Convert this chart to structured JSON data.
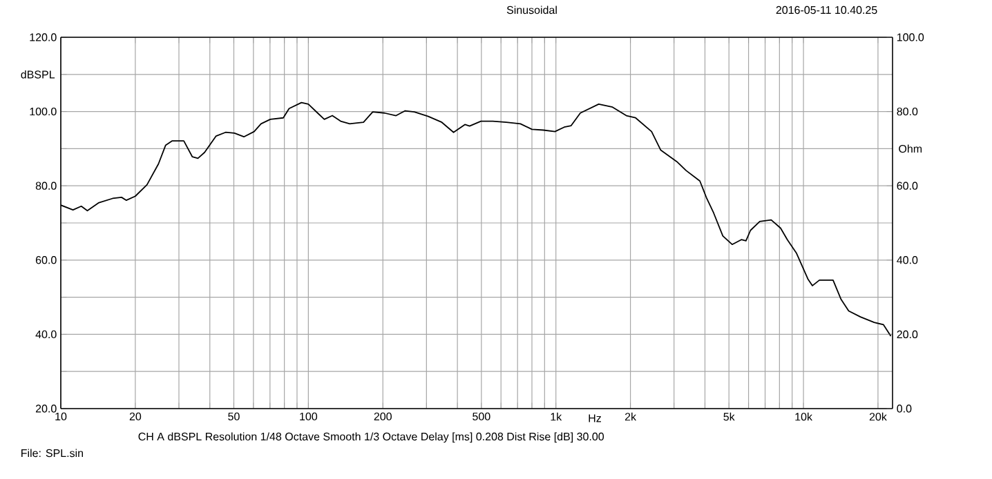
{
  "chart_data": {
    "type": "line",
    "title": "Sinusoidal",
    "subtitle": "2016-05-11 10.40.25",
    "xlabel": "Hz",
    "ylabel": "dBSPL",
    "y2label": "Ohm",
    "annotations": [
      "CH A   dBSPL   Resolution 1/48 Octave   Smooth 1/3 Octave   Delay [ms] 0.208   Dist Rise [dB] 30.00",
      "File:   SPL.sin"
    ],
    "log": "x",
    "grid": true,
    "marker": "none",
    "line_style": "solid",
    "color": "#000000",
    "xlim": [
      10,
      22900
    ],
    "ylim": [
      20,
      120
    ],
    "y2lim": [
      0,
      100
    ],
    "xticks": [
      10,
      20,
      {
        "value": 30,
        "label": null
      },
      {
        "value": 40,
        "label": null
      },
      50,
      {
        "value": 60,
        "label": null
      },
      {
        "value": 70,
        "label": null
      },
      {
        "value": 80,
        "label": null
      },
      {
        "value": 90,
        "label": null
      },
      100,
      200,
      {
        "value": 300,
        "label": null
      },
      {
        "value": 400,
        "label": null
      },
      500,
      {
        "value": 600,
        "label": null
      },
      {
        "value": 700,
        "label": null
      },
      {
        "value": 800,
        "label": null
      },
      {
        "value": 900,
        "label": null
      },
      {
        "value": 1000,
        "label": "1k"
      },
      {
        "value": 2000,
        "label": "2k"
      },
      {
        "value": 3000,
        "label": null
      },
      {
        "value": 4000,
        "label": null
      },
      {
        "value": 5000,
        "label": "5k"
      },
      {
        "value": 6000,
        "label": null
      },
      {
        "value": 7000,
        "label": null
      },
      {
        "value": 8000,
        "label": null
      },
      {
        "value": 9000,
        "label": null
      },
      {
        "value": 10000,
        "label": "10k"
      },
      {
        "value": 20000,
        "label": "20k"
      }
    ],
    "yticks": [
      {
        "value": 20,
        "label": "20.0"
      },
      {
        "value": 30,
        "label": null
      },
      {
        "value": 40,
        "label": "40.0"
      },
      {
        "value": 50,
        "label": null
      },
      {
        "value": 60,
        "label": "60.0"
      },
      {
        "value": 70,
        "label": null
      },
      {
        "value": 80,
        "label": "80.0"
      },
      {
        "value": 90,
        "label": null
      },
      {
        "value": 100,
        "label": "100.0"
      },
      {
        "value": 110,
        "label": null
      },
      {
        "value": 120,
        "label": "120.0"
      }
    ],
    "y2ticks": [
      {
        "value": 0,
        "label": "0.0"
      },
      {
        "value": 20,
        "label": "20.0"
      },
      {
        "value": 40,
        "label": "40.0"
      },
      {
        "value": 60,
        "label": "60.0"
      },
      {
        "value": 80,
        "label": "80.0"
      },
      {
        "value": 100,
        "label": "100.0"
      }
    ],
    "x": [
      10,
      11.2,
      12.1,
      12.8,
      14.2,
      16.2,
      17.6,
      18.4,
      20,
      22.3,
      24.8,
      26.5,
      28.2,
      31.4,
      34,
      35.8,
      38.1,
      42.4,
      46.3,
      50.3,
      54.9,
      60.4,
      64.4,
      70.2,
      79.2,
      83.6,
      93.8,
      100,
      109,
      116,
      125,
      135,
      147,
      167,
      182,
      203,
      226,
      246,
      268,
      305,
      346,
      386,
      429,
      448,
      498,
      556,
      630,
      719,
      800,
      891,
      991,
      1080,
      1152,
      1255,
      1489,
      1693,
      1926,
      2098,
      2435,
      2652,
      3079,
      3358,
      3816,
      4067,
      4336,
      4724,
      5151,
      5613,
      5858,
      6110,
      6660,
      7407,
      8083,
      8606,
      9378,
      10420,
      10870,
      11600,
      13170,
      14190,
      15230,
      16990,
      19300,
      21050,
      22540
    ],
    "values": [
      74.8,
      73.5,
      74.5,
      73.3,
      75.4,
      76.6,
      76.9,
      76.1,
      77.2,
      80.3,
      85.9,
      90.9,
      92.1,
      92.1,
      87.8,
      87.4,
      89.0,
      93.4,
      94.4,
      94.2,
      93.2,
      94.6,
      96.7,
      97.9,
      98.3,
      100.8,
      102.4,
      102.0,
      99.6,
      97.9,
      98.9,
      97.4,
      96.7,
      97.1,
      99.9,
      99.6,
      98.9,
      100.2,
      99.9,
      98.7,
      97.1,
      94.4,
      96.5,
      96.1,
      97.4,
      97.4,
      97.1,
      96.7,
      95.2,
      95.0,
      94.6,
      95.8,
      96.2,
      99.6,
      102.0,
      101.2,
      98.9,
      98.3,
      94.6,
      89.6,
      86.5,
      84.1,
      81.3,
      76.6,
      72.7,
      66.5,
      64.2,
      65.5,
      65.2,
      68.0,
      70.4,
      70.8,
      68.6,
      65.5,
      61.8,
      54.9,
      53.1,
      54.6,
      54.6,
      49.4,
      46.3,
      44.7,
      43.2,
      42.6,
      39.5
    ]
  }
}
